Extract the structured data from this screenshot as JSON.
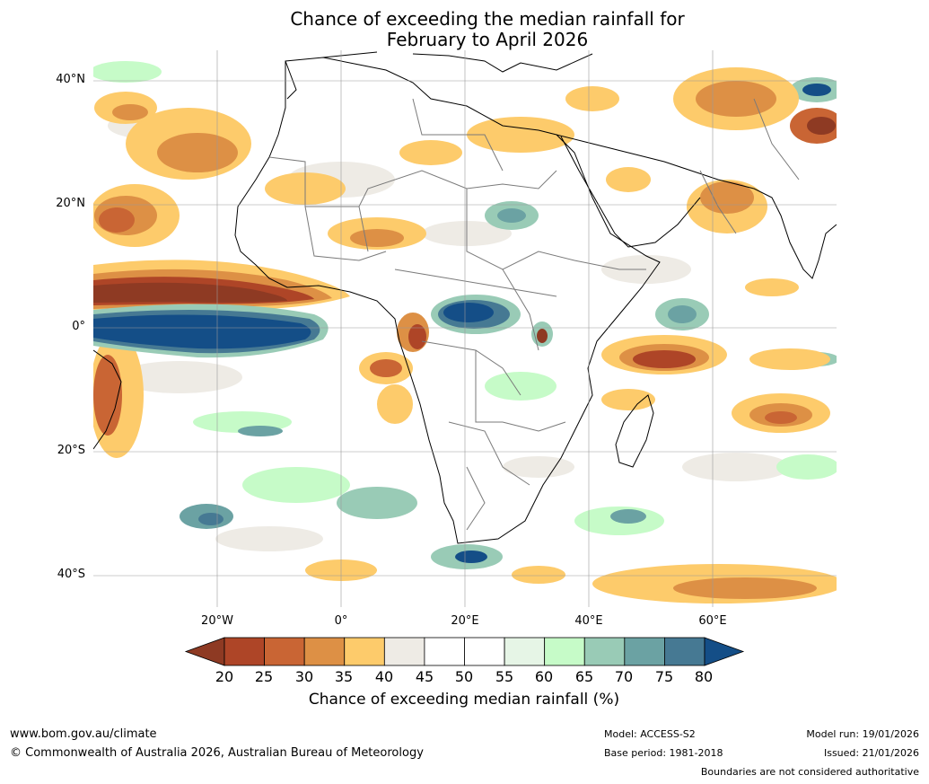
{
  "title_line1": "Chance of exceeding the median rainfall for",
  "title_line2": "February to April 2026",
  "lat_labels": [
    "40°N",
    "20°N",
    "0°",
    "20°S",
    "40°S"
  ],
  "lon_labels": [
    "20°W",
    "0°",
    "20°E",
    "40°E",
    "60°E"
  ],
  "legend": {
    "ticks": [
      "20",
      "25",
      "30",
      "35",
      "40",
      "45",
      "50",
      "55",
      "60",
      "65",
      "70",
      "75",
      "80"
    ],
    "title": "Chance of exceeding median rainfall (%)",
    "colors": {
      "below_20": "#8e3a23",
      "20_25": "#ae4527",
      "25_30": "#c96534",
      "30_35": "#dd9045",
      "35_40": "#fdcb6b",
      "40_45": "#eeebe5",
      "45_55": "#ffffff",
      "55_60": "#e6f5e6",
      "60_65": "#c6fbc8",
      "65_70": "#99cbb6",
      "70_75": "#6ba2a3",
      "75_80": "#467993",
      "above_80": "#144e87"
    }
  },
  "footer": {
    "website": "www.bom.gov.au/climate",
    "copyright": "© Commonwealth of Australia 2026, Australian Bureau of Meteorology",
    "model": "Model: ACCESS-S2",
    "base_period": "Base period: 1981-2018",
    "model_run": "Model run: 19/01/2026",
    "issued": "Issued: 21/01/2026",
    "disclaimer": "Boundaries are not considered authoritative"
  }
}
